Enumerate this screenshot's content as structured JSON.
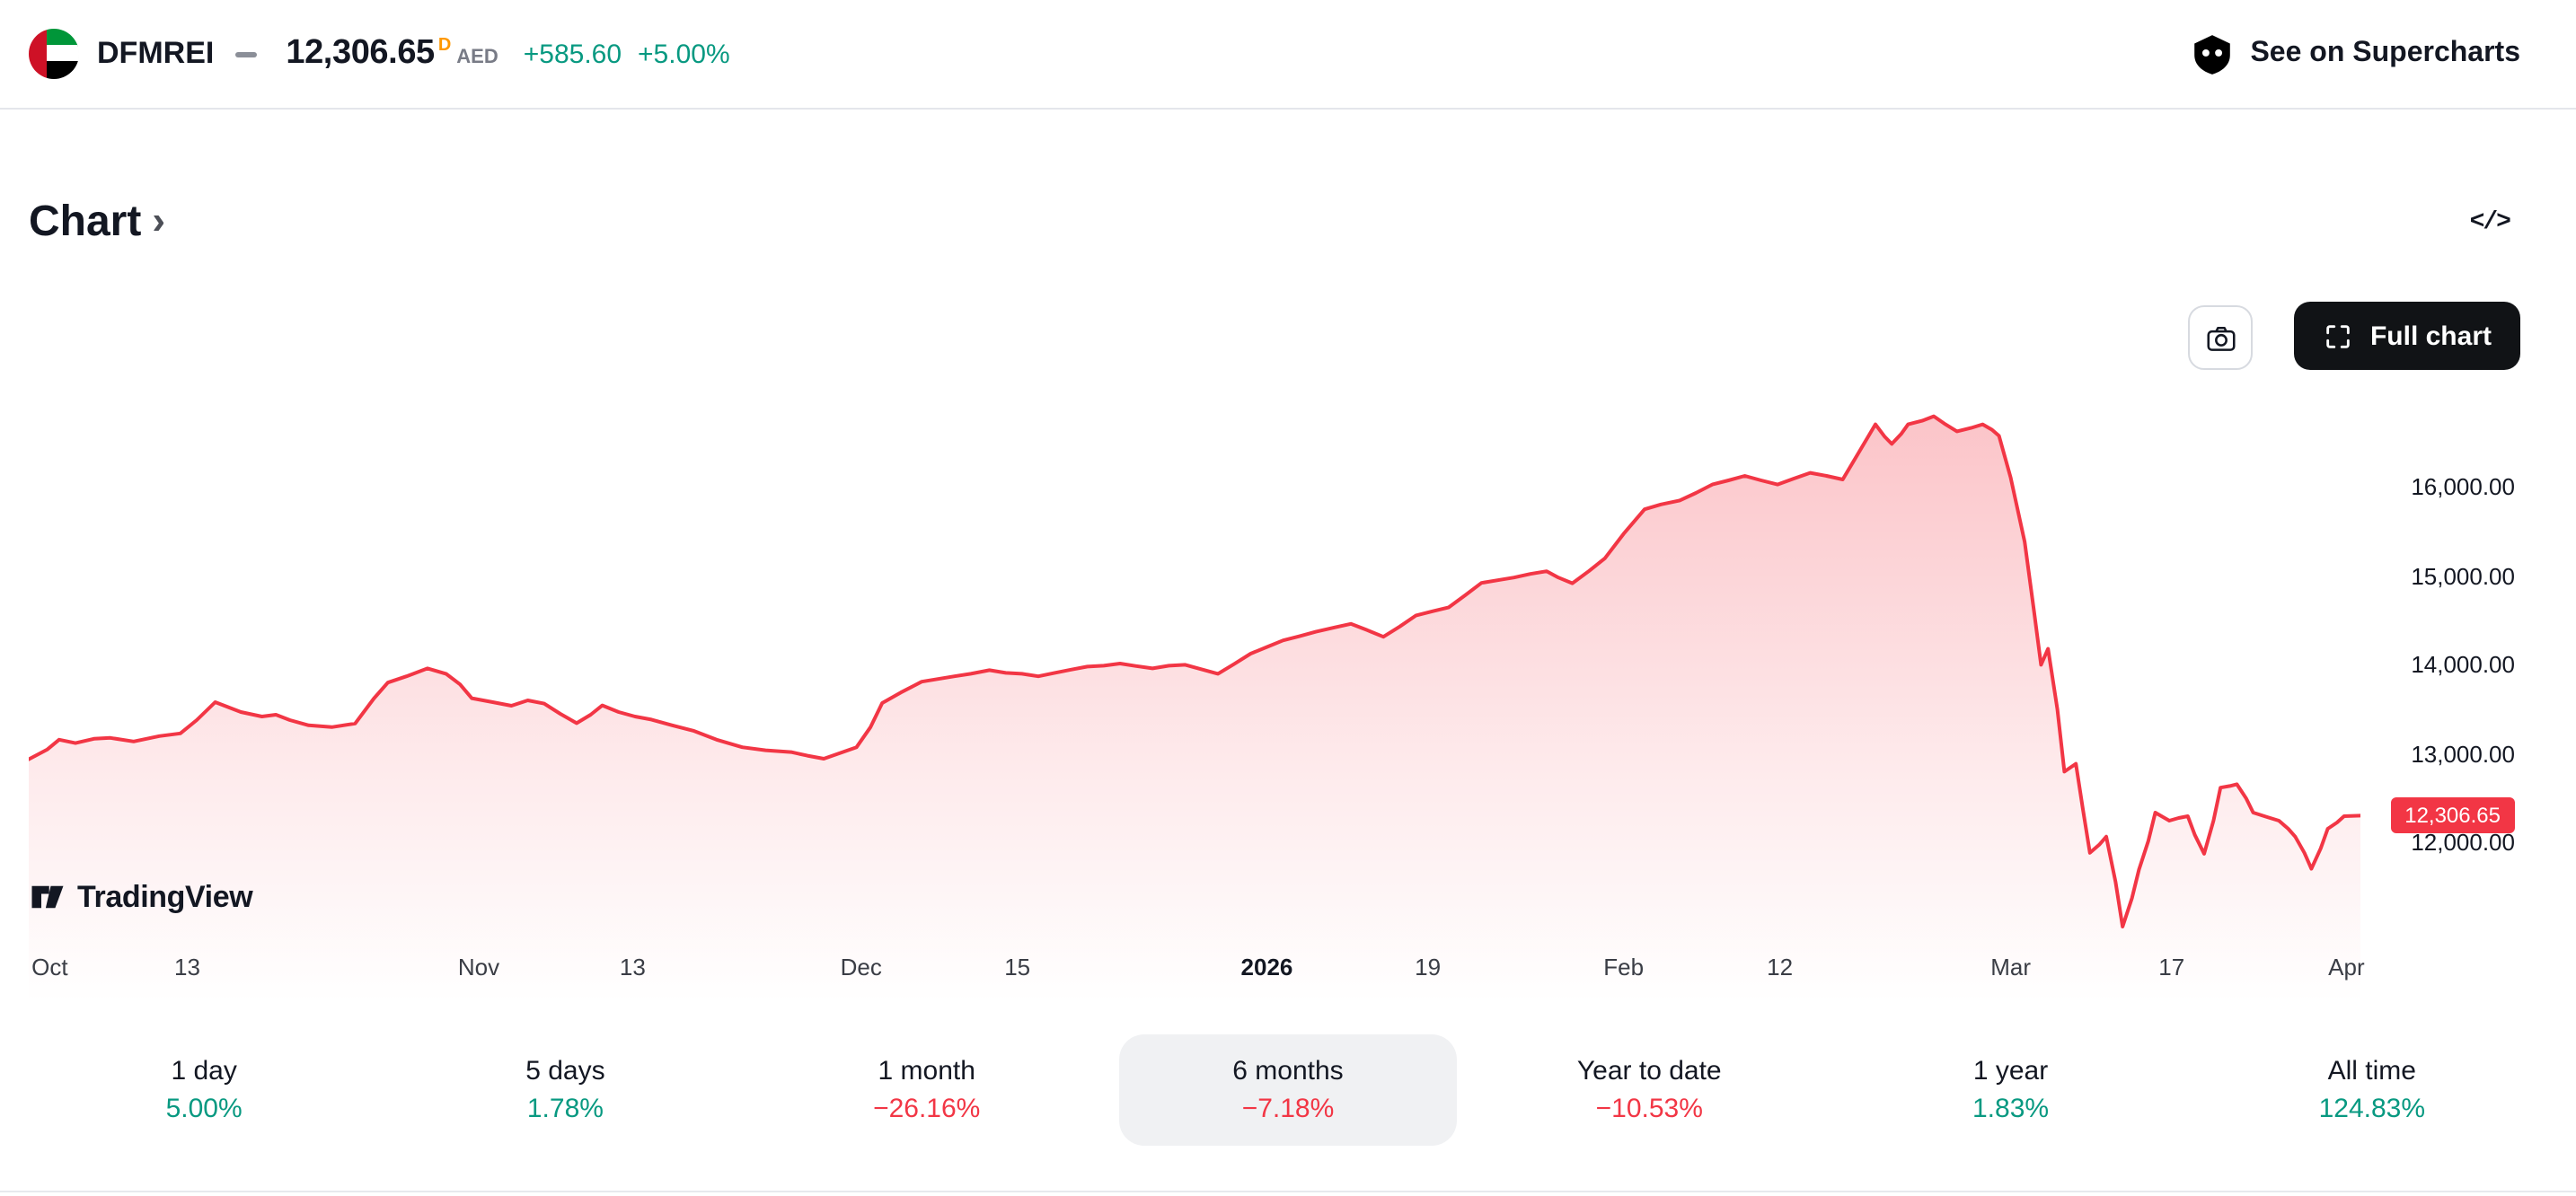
{
  "header": {
    "symbol": "DFMREI",
    "price": "12,306.65",
    "market_flag": "D",
    "currency": "AED",
    "change_abs": "+585.60",
    "change_pct": "+5.00%",
    "see_on": "See on Supercharts"
  },
  "section": {
    "title": "Chart",
    "chevron": "›",
    "code_icon_label": "</>"
  },
  "chart_toolbar": {
    "full_chart_label": "Full chart"
  },
  "watermark": {
    "label": "TradingView"
  },
  "colors": {
    "up": "#089981",
    "down": "#F23645",
    "line": "#F23645",
    "badge": "#F23645",
    "delayed_flag": "#FF9800"
  },
  "chart_data": {
    "type": "area",
    "symbol": "DFMREI",
    "currency": "AED",
    "selected_range": "6 months",
    "line_color": "#F23645",
    "ylim": [
      11000,
      17000
    ],
    "grid": false,
    "y_axis": [
      {
        "label": "16,000.00",
        "value": 16000
      },
      {
        "label": "15,000.00",
        "value": 15000
      },
      {
        "label": "14,000.00",
        "value": 14000
      },
      {
        "label": "13,000.00",
        "value": 13000
      },
      {
        "label": "12,000.00",
        "value": 12000
      }
    ],
    "last_price": {
      "label": "12,306.65",
      "value": 12306.65
    },
    "x_axis_labels": [
      {
        "label": "Oct",
        "t": 0.009,
        "bold": false
      },
      {
        "label": "13",
        "t": 0.068,
        "bold": false
      },
      {
        "label": "Nov",
        "t": 0.193,
        "bold": false
      },
      {
        "label": "13",
        "t": 0.259,
        "bold": false
      },
      {
        "label": "Dec",
        "t": 0.357,
        "bold": false
      },
      {
        "label": "15",
        "t": 0.424,
        "bold": false
      },
      {
        "label": "2026",
        "t": 0.531,
        "bold": true
      },
      {
        "label": "19",
        "t": 0.6,
        "bold": false
      },
      {
        "label": "Feb",
        "t": 0.684,
        "bold": false
      },
      {
        "label": "12",
        "t": 0.751,
        "bold": false
      },
      {
        "label": "Mar",
        "t": 0.85,
        "bold": false
      },
      {
        "label": "17",
        "t": 0.919,
        "bold": false
      },
      {
        "label": "Apr",
        "t": 0.994,
        "bold": false
      }
    ],
    "points": [
      [
        0.0,
        12940
      ],
      [
        0.008,
        13050
      ],
      [
        0.013,
        13160
      ],
      [
        0.02,
        13120
      ],
      [
        0.028,
        13170
      ],
      [
        0.035,
        13180
      ],
      [
        0.045,
        13140
      ],
      [
        0.056,
        13200
      ],
      [
        0.065,
        13230
      ],
      [
        0.072,
        13380
      ],
      [
        0.08,
        13580
      ],
      [
        0.086,
        13520
      ],
      [
        0.091,
        13470
      ],
      [
        0.1,
        13420
      ],
      [
        0.106,
        13440
      ],
      [
        0.112,
        13380
      ],
      [
        0.12,
        13320
      ],
      [
        0.13,
        13300
      ],
      [
        0.14,
        13340
      ],
      [
        0.148,
        13620
      ],
      [
        0.154,
        13800
      ],
      [
        0.162,
        13870
      ],
      [
        0.171,
        13960
      ],
      [
        0.179,
        13900
      ],
      [
        0.185,
        13780
      ],
      [
        0.19,
        13625
      ],
      [
        0.199,
        13580
      ],
      [
        0.207,
        13540
      ],
      [
        0.214,
        13600
      ],
      [
        0.221,
        13565
      ],
      [
        0.228,
        13450
      ],
      [
        0.235,
        13345
      ],
      [
        0.241,
        13440
      ],
      [
        0.246,
        13545
      ],
      [
        0.253,
        13470
      ],
      [
        0.26,
        13420
      ],
      [
        0.267,
        13385
      ],
      [
        0.276,
        13320
      ],
      [
        0.285,
        13260
      ],
      [
        0.295,
        13160
      ],
      [
        0.306,
        13075
      ],
      [
        0.316,
        13040
      ],
      [
        0.327,
        13020
      ],
      [
        0.334,
        12980
      ],
      [
        0.341,
        12945
      ],
      [
        0.348,
        13010
      ],
      [
        0.355,
        13075
      ],
      [
        0.361,
        13300
      ],
      [
        0.366,
        13570
      ],
      [
        0.374,
        13690
      ],
      [
        0.383,
        13810
      ],
      [
        0.39,
        13840
      ],
      [
        0.397,
        13870
      ],
      [
        0.404,
        13900
      ],
      [
        0.412,
        13940
      ],
      [
        0.419,
        13910
      ],
      [
        0.426,
        13900
      ],
      [
        0.433,
        13870
      ],
      [
        0.44,
        13910
      ],
      [
        0.447,
        13945
      ],
      [
        0.454,
        13980
      ],
      [
        0.461,
        13990
      ],
      [
        0.468,
        14015
      ],
      [
        0.475,
        13985
      ],
      [
        0.482,
        13960
      ],
      [
        0.489,
        13990
      ],
      [
        0.496,
        14000
      ],
      [
        0.503,
        13950
      ],
      [
        0.51,
        13900
      ],
      [
        0.517,
        14010
      ],
      [
        0.524,
        14125
      ],
      [
        0.531,
        14200
      ],
      [
        0.538,
        14275
      ],
      [
        0.545,
        14320
      ],
      [
        0.552,
        14370
      ],
      [
        0.56,
        14420
      ],
      [
        0.567,
        14460
      ],
      [
        0.574,
        14390
      ],
      [
        0.581,
        14315
      ],
      [
        0.588,
        14430
      ],
      [
        0.595,
        14555
      ],
      [
        0.602,
        14600
      ],
      [
        0.609,
        14645
      ],
      [
        0.616,
        14780
      ],
      [
        0.623,
        14920
      ],
      [
        0.63,
        14950
      ],
      [
        0.637,
        14980
      ],
      [
        0.644,
        15020
      ],
      [
        0.651,
        15050
      ],
      [
        0.656,
        14980
      ],
      [
        0.662,
        14915
      ],
      [
        0.669,
        15050
      ],
      [
        0.676,
        15195
      ],
      [
        0.684,
        15470
      ],
      [
        0.693,
        15745
      ],
      [
        0.7,
        15800
      ],
      [
        0.708,
        15845
      ],
      [
        0.715,
        15930
      ],
      [
        0.722,
        16025
      ],
      [
        0.729,
        16070
      ],
      [
        0.736,
        16120
      ],
      [
        0.743,
        16070
      ],
      [
        0.75,
        16025
      ],
      [
        0.757,
        16090
      ],
      [
        0.764,
        16155
      ],
      [
        0.771,
        16120
      ],
      [
        0.778,
        16080
      ],
      [
        0.785,
        16390
      ],
      [
        0.792,
        16700
      ],
      [
        0.796,
        16560
      ],
      [
        0.799,
        16480
      ],
      [
        0.803,
        16590
      ],
      [
        0.806,
        16700
      ],
      [
        0.812,
        16740
      ],
      [
        0.817,
        16790
      ],
      [
        0.822,
        16700
      ],
      [
        0.827,
        16620
      ],
      [
        0.833,
        16660
      ],
      [
        0.838,
        16700
      ],
      [
        0.842,
        16640
      ],
      [
        0.845,
        16570
      ],
      [
        0.85,
        16100
      ],
      [
        0.856,
        15380
      ],
      [
        0.86,
        14600
      ],
      [
        0.863,
        14000
      ],
      [
        0.866,
        14180
      ],
      [
        0.87,
        13500
      ],
      [
        0.873,
        12800
      ],
      [
        0.878,
        12890
      ],
      [
        0.881,
        12380
      ],
      [
        0.884,
        11890
      ],
      [
        0.888,
        11980
      ],
      [
        0.891,
        12070
      ],
      [
        0.895,
        11560
      ],
      [
        0.898,
        11060
      ],
      [
        0.902,
        11380
      ],
      [
        0.905,
        11700
      ],
      [
        0.909,
        12020
      ],
      [
        0.912,
        12340
      ],
      [
        0.918,
        12250
      ],
      [
        0.922,
        12280
      ],
      [
        0.926,
        12300
      ],
      [
        0.929,
        12090
      ],
      [
        0.933,
        11880
      ],
      [
        0.937,
        12250
      ],
      [
        0.94,
        12620
      ],
      [
        0.944,
        12640
      ],
      [
        0.947,
        12660
      ],
      [
        0.951,
        12500
      ],
      [
        0.954,
        12340
      ],
      [
        0.96,
        12290
      ],
      [
        0.965,
        12250
      ],
      [
        0.969,
        12160
      ],
      [
        0.972,
        12070
      ],
      [
        0.976,
        11890
      ],
      [
        0.979,
        11710
      ],
      [
        0.983,
        11940
      ],
      [
        0.986,
        12160
      ],
      [
        0.99,
        12230
      ],
      [
        0.993,
        12300
      ],
      [
        1.0,
        12306.65
      ]
    ]
  },
  "periods": [
    {
      "label": "1 day",
      "value": "5.00%",
      "direction": "up",
      "selected": false
    },
    {
      "label": "5 days",
      "value": "1.78%",
      "direction": "up",
      "selected": false
    },
    {
      "label": "1 month",
      "value": "−26.16%",
      "direction": "down",
      "selected": false
    },
    {
      "label": "6 months",
      "value": "−7.18%",
      "direction": "down",
      "selected": true
    },
    {
      "label": "Year to date",
      "value": "−10.53%",
      "direction": "down",
      "selected": false
    },
    {
      "label": "1 year",
      "value": "1.83%",
      "direction": "up",
      "selected": false
    },
    {
      "label": "All time",
      "value": "124.83%",
      "direction": "up",
      "selected": false
    }
  ]
}
